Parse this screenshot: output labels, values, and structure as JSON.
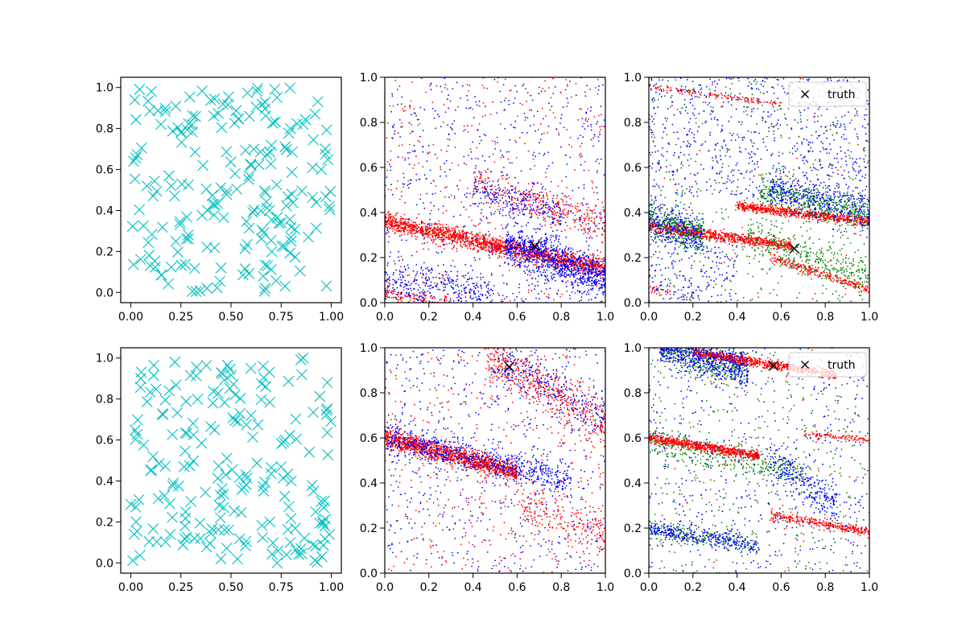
{
  "figure": {
    "background": "#ffffff"
  },
  "chart_data": [
    {
      "id": "r1c1",
      "type": "scatter",
      "marker": "x",
      "color": "#00bfbf",
      "xlim": [
        -0.05,
        1.05
      ],
      "ylim": [
        -0.05,
        1.05
      ],
      "xticks": [
        0.0,
        0.25,
        0.5,
        0.75,
        1.0
      ],
      "xtick_labels": [
        "0.00",
        "0.25",
        "0.50",
        "0.75",
        "1.00"
      ],
      "yticks": [
        0.0,
        0.2,
        0.4,
        0.6,
        0.8,
        1.0
      ],
      "ytick_labels": [
        "0.0",
        "0.2",
        "0.4",
        "0.6",
        "0.8",
        "1.0"
      ],
      "points_approx": "~200 uniformly scattered x markers over [0,1]x[0,1]",
      "sample_points": [
        [
          0.02,
          0.94
        ],
        [
          0.08,
          0.52
        ],
        [
          0.15,
          0.82
        ],
        [
          0.25,
          0.78
        ],
        [
          0.36,
          0.62
        ],
        [
          0.46,
          0.92
        ],
        [
          0.52,
          0.58
        ],
        [
          0.6,
          0.62
        ],
        [
          0.67,
          0.02
        ],
        [
          0.75,
          0.34
        ],
        [
          0.86,
          0.82
        ],
        [
          0.95,
          0.6
        ],
        [
          0.38,
          0.02
        ],
        [
          0.45,
          0.12
        ],
        [
          0.8,
          0.25
        ],
        [
          0.99,
          0.42
        ]
      ]
    },
    {
      "id": "r1c2",
      "type": "scatter",
      "marker": "dot",
      "xlim": [
        0,
        1
      ],
      "ylim": [
        0,
        1
      ],
      "xticks": [
        0,
        0.2,
        0.4,
        0.6,
        0.8,
        1.0
      ],
      "xtick_labels": [
        "0.0",
        "0.2",
        "0.4",
        "0.6",
        "0.8",
        "1.0"
      ],
      "yticks": [
        0,
        0.2,
        0.4,
        0.6,
        0.8,
        1.0
      ],
      "ytick_labels": [
        "0.0",
        "0.2",
        "0.4",
        "0.6",
        "0.8",
        "1.0"
      ],
      "series_colors": [
        "#0000ff",
        "#ff0000"
      ],
      "bands": [
        {
          "color": "#ff0000",
          "x0": 0.0,
          "y0": 0.36,
          "x1": 1.0,
          "y1": 0.15,
          "spread": 0.02,
          "n": 1800
        },
        {
          "color": "#0000ff",
          "x0": 0.55,
          "y0": 0.26,
          "x1": 1.0,
          "y1": 0.1,
          "spread": 0.045,
          "n": 900
        },
        {
          "color": "#0000ff",
          "x0": 0.0,
          "y0": 0.1,
          "x1": 0.5,
          "y1": 0.05,
          "spread": 0.04,
          "n": 300
        },
        {
          "color": "#ff0000",
          "x0": 0.4,
          "y0": 0.52,
          "x1": 1.0,
          "y1": 0.36,
          "spread": 0.035,
          "n": 350
        },
        {
          "color": "#0000ff",
          "x0": 0.4,
          "y0": 0.5,
          "x1": 0.8,
          "y1": 0.4,
          "spread": 0.04,
          "n": 200
        },
        {
          "color": "#ff0000",
          "x0": 0.0,
          "y0": 0.04,
          "x1": 0.3,
          "y1": 0.0,
          "spread": 0.015,
          "n": 120
        }
      ],
      "scatter_noise": [
        {
          "color": "#0000ff",
          "xmin": 0.0,
          "xmax": 1.0,
          "ymin": 0.0,
          "ymax": 1.0,
          "n": 600
        },
        {
          "color": "#ff0000",
          "xmin": 0.0,
          "xmax": 1.0,
          "ymin": 0.0,
          "ymax": 1.0,
          "n": 400
        }
      ],
      "truth": {
        "x": 0.68,
        "y": 0.25,
        "marker": "x",
        "color": "#000000"
      }
    },
    {
      "id": "r1c3",
      "type": "scatter",
      "marker": "dot",
      "xlim": [
        0,
        1
      ],
      "ylim": [
        0,
        1
      ],
      "xticks": [
        0,
        0.2,
        0.4,
        0.6,
        0.8,
        1.0
      ],
      "xtick_labels": [
        "0.0",
        "0.2",
        "0.4",
        "0.6",
        "0.8",
        "1.0"
      ],
      "yticks": [
        0,
        0.2,
        0.4,
        0.6,
        0.8,
        1.0
      ],
      "ytick_labels": [
        "0.0",
        "0.2",
        "0.4",
        "0.6",
        "0.8",
        "1.0"
      ],
      "series_colors": [
        "#0000ff",
        "#008000",
        "#ff0000"
      ],
      "bands": [
        {
          "color": "#0000ff",
          "x0": 0.0,
          "y0": 0.37,
          "x1": 0.25,
          "y1": 0.3,
          "spread": 0.04,
          "n": 350
        },
        {
          "color": "#008000",
          "x0": 0.0,
          "y0": 0.36,
          "x1": 0.25,
          "y1": 0.3,
          "spread": 0.04,
          "n": 250
        },
        {
          "color": "#0000ff",
          "x0": 0.55,
          "y0": 0.5,
          "x1": 1.0,
          "y1": 0.4,
          "spread": 0.04,
          "n": 450
        },
        {
          "color": "#008000",
          "x0": 0.5,
          "y0": 0.5,
          "x1": 1.0,
          "y1": 0.38,
          "spread": 0.04,
          "n": 350
        },
        {
          "color": "#ff0000",
          "x0": 0.4,
          "y0": 0.43,
          "x1": 1.0,
          "y1": 0.36,
          "spread": 0.01,
          "n": 700
        },
        {
          "color": "#ff0000",
          "x0": 0.0,
          "y0": 0.34,
          "x1": 0.65,
          "y1": 0.25,
          "spread": 0.012,
          "n": 800
        },
        {
          "color": "#008000",
          "x0": 0.45,
          "y0": 0.3,
          "x1": 1.0,
          "y1": 0.12,
          "spread": 0.04,
          "n": 300
        },
        {
          "color": "#ff0000",
          "x0": 0.55,
          "y0": 0.2,
          "x1": 1.0,
          "y1": 0.06,
          "spread": 0.01,
          "n": 250
        },
        {
          "color": "#ff0000",
          "x0": 0.0,
          "y0": 0.96,
          "x1": 0.6,
          "y1": 0.88,
          "spread": 0.006,
          "n": 150
        },
        {
          "color": "#ff0000",
          "x0": 0.0,
          "y0": 0.06,
          "x1": 0.1,
          "y1": 0.05,
          "spread": 0.01,
          "n": 30
        }
      ],
      "scatter_noise": [
        {
          "color": "#0000ff",
          "xmin": 0.0,
          "xmax": 1.0,
          "ymin": 0.45,
          "ymax": 1.0,
          "n": 700
        },
        {
          "color": "#008000",
          "xmin": 0.0,
          "xmax": 1.0,
          "ymin": 0.0,
          "ymax": 1.0,
          "n": 450
        },
        {
          "color": "#0000ff",
          "xmin": 0.0,
          "xmax": 0.4,
          "ymin": 0.0,
          "ymax": 0.3,
          "n": 200
        },
        {
          "color": "#ff0000",
          "xmin": 0.0,
          "xmax": 1.0,
          "ymin": 0.0,
          "ymax": 1.0,
          "n": 80
        }
      ],
      "truth": {
        "x": 0.66,
        "y": 0.24,
        "marker": "x",
        "color": "#000000"
      },
      "legend": {
        "placement": "upper right",
        "entries": [
          "truth"
        ]
      }
    },
    {
      "id": "r2c1",
      "type": "scatter",
      "marker": "x",
      "color": "#00bfbf",
      "xlim": [
        -0.05,
        1.05
      ],
      "ylim": [
        -0.05,
        1.05
      ],
      "xticks": [
        0.0,
        0.25,
        0.5,
        0.75,
        1.0
      ],
      "xtick_labels": [
        "0.00",
        "0.25",
        "0.50",
        "0.75",
        "1.00"
      ],
      "yticks": [
        0.0,
        0.2,
        0.4,
        0.6,
        0.8,
        1.0
      ],
      "ytick_labels": [
        "0.0",
        "0.2",
        "0.4",
        "0.6",
        "0.8",
        "1.0"
      ],
      "points_approx": "~200 uniformly scattered x markers over [0,1]x[0,1]",
      "sample_points": [
        [
          0.05,
          0.9
        ],
        [
          0.1,
          0.45
        ],
        [
          0.22,
          0.98
        ],
        [
          0.27,
          0.18
        ],
        [
          0.41,
          0.78
        ],
        [
          0.52,
          0.82
        ],
        [
          0.6,
          0.72
        ],
        [
          0.73,
          0.0
        ],
        [
          0.86,
          1.0
        ],
        [
          0.95,
          0.3
        ],
        [
          0.98,
          0.88
        ],
        [
          0.3,
          0.3
        ],
        [
          0.45,
          0.02
        ],
        [
          0.66,
          0.96
        ],
        [
          0.8,
          0.4
        ]
      ]
    },
    {
      "id": "r2c2",
      "type": "scatter",
      "marker": "dot",
      "xlim": [
        0,
        1
      ],
      "ylim": [
        0,
        1
      ],
      "xticks": [
        0,
        0.2,
        0.4,
        0.6,
        0.8,
        1.0
      ],
      "xtick_labels": [
        "0.0",
        "0.2",
        "0.4",
        "0.6",
        "0.8",
        "1.0"
      ],
      "yticks": [
        0,
        0.2,
        0.4,
        0.6,
        0.8,
        1.0
      ],
      "ytick_labels": [
        "0.0",
        "0.2",
        "0.4",
        "0.6",
        "0.8",
        "1.0"
      ],
      "series_colors": [
        "#0000ff",
        "#ff0000"
      ],
      "bands": [
        {
          "color": "#ff0000",
          "x0": 0.0,
          "y0": 0.6,
          "x1": 0.6,
          "y1": 0.45,
          "spread": 0.02,
          "n": 1300
        },
        {
          "color": "#0000ff",
          "x0": 0.0,
          "y0": 0.61,
          "x1": 0.85,
          "y1": 0.4,
          "spread": 0.035,
          "n": 700
        },
        {
          "color": "#ff0000",
          "x0": 0.45,
          "y0": 0.98,
          "x1": 1.0,
          "y1": 0.65,
          "spread": 0.05,
          "n": 500
        },
        {
          "color": "#0000ff",
          "x0": 0.5,
          "y0": 0.95,
          "x1": 1.0,
          "y1": 0.7,
          "spread": 0.05,
          "n": 250
        },
        {
          "color": "#ff0000",
          "x0": 0.6,
          "y0": 0.3,
          "x1": 1.0,
          "y1": 0.15,
          "spread": 0.05,
          "n": 200
        }
      ],
      "scatter_noise": [
        {
          "color": "#0000ff",
          "xmin": 0.0,
          "xmax": 1.0,
          "ymin": 0.0,
          "ymax": 1.0,
          "n": 500
        },
        {
          "color": "#ff0000",
          "xmin": 0.0,
          "xmax": 1.0,
          "ymin": 0.0,
          "ymax": 1.0,
          "n": 500
        }
      ],
      "truth": {
        "x": 0.565,
        "y": 0.915,
        "marker": "x",
        "color": "#000000"
      }
    },
    {
      "id": "r2c3",
      "type": "scatter",
      "marker": "dot",
      "xlim": [
        0,
        1
      ],
      "ylim": [
        0,
        1
      ],
      "xticks": [
        0,
        0.2,
        0.4,
        0.6,
        0.8,
        1.0
      ],
      "xtick_labels": [
        "0.0",
        "0.2",
        "0.4",
        "0.6",
        "0.8",
        "1.0"
      ],
      "yticks": [
        0,
        0.2,
        0.4,
        0.6,
        0.8,
        1.0
      ],
      "ytick_labels": [
        "0.0",
        "0.2",
        "0.4",
        "0.6",
        "0.8",
        "1.0"
      ],
      "series_colors": [
        "#0000ff",
        "#008000",
        "#ff0000"
      ],
      "bands": [
        {
          "color": "#0000ff",
          "x0": 0.05,
          "y0": 1.0,
          "x1": 0.45,
          "y1": 0.9,
          "spread": 0.04,
          "n": 600
        },
        {
          "color": "#008000",
          "x0": 0.05,
          "y0": 1.0,
          "x1": 0.45,
          "y1": 0.9,
          "spread": 0.04,
          "n": 400
        },
        {
          "color": "#ff0000",
          "x0": 0.2,
          "y0": 0.98,
          "x1": 0.85,
          "y1": 0.88,
          "spread": 0.01,
          "n": 800
        },
        {
          "color": "#ff0000",
          "x0": 0.0,
          "y0": 0.6,
          "x1": 0.5,
          "y1": 0.52,
          "spread": 0.01,
          "n": 700
        },
        {
          "color": "#008000",
          "x0": 0.0,
          "y0": 0.58,
          "x1": 0.7,
          "y1": 0.45,
          "spread": 0.03,
          "n": 350
        },
        {
          "color": "#0000ff",
          "x0": 0.55,
          "y0": 0.5,
          "x1": 0.85,
          "y1": 0.3,
          "spread": 0.04,
          "n": 250
        },
        {
          "color": "#0000ff",
          "x0": 0.0,
          "y0": 0.2,
          "x1": 0.5,
          "y1": 0.12,
          "spread": 0.02,
          "n": 300
        },
        {
          "color": "#008000",
          "x0": 0.0,
          "y0": 0.2,
          "x1": 0.5,
          "y1": 0.12,
          "spread": 0.02,
          "n": 200
        },
        {
          "color": "#ff0000",
          "x0": 0.55,
          "y0": 0.26,
          "x1": 1.0,
          "y1": 0.18,
          "spread": 0.01,
          "n": 300
        },
        {
          "color": "#ff0000",
          "x0": 0.7,
          "y0": 0.62,
          "x1": 1.0,
          "y1": 0.59,
          "spread": 0.008,
          "n": 100
        }
      ],
      "scatter_noise": [
        {
          "color": "#0000ff",
          "xmin": 0.0,
          "xmax": 1.0,
          "ymin": 0.0,
          "ymax": 1.0,
          "n": 450
        },
        {
          "color": "#008000",
          "xmin": 0.0,
          "xmax": 1.0,
          "ymin": 0.0,
          "ymax": 1.0,
          "n": 450
        },
        {
          "color": "#ff0000",
          "xmin": 0.0,
          "xmax": 1.0,
          "ymin": 0.0,
          "ymax": 1.0,
          "n": 60
        }
      ],
      "truth": {
        "x": 0.565,
        "y": 0.92,
        "marker": "x",
        "color": "#000000"
      },
      "legend": {
        "placement": "upper right",
        "entries": [
          "truth"
        ]
      }
    }
  ]
}
